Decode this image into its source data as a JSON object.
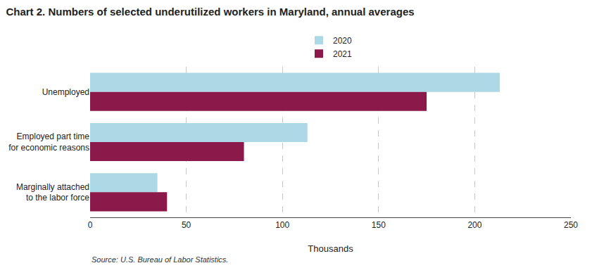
{
  "chart_data": {
    "type": "bar",
    "orientation": "horizontal",
    "title": "Chart 2. Numbers of selected underutilized workers in Maryland, annual averages",
    "categories": [
      "Unemployed",
      "Employed part time\nfor economic reasons",
      "Marginally attached\nto the labor force"
    ],
    "series": [
      {
        "name": "2020",
        "color": "#add8e6",
        "values": [
          213,
          113,
          35
        ]
      },
      {
        "name": "2021",
        "color": "#8b1a4a",
        "values": [
          175,
          80,
          40
        ]
      }
    ],
    "xlabel": "Thousands",
    "xlim": [
      0,
      250
    ],
    "xticks": [
      0,
      50,
      100,
      150,
      200,
      250
    ],
    "grid": true,
    "legend": "upper center",
    "annotations": [
      "Source: U.S. Bureau of Labor Statistics."
    ]
  }
}
